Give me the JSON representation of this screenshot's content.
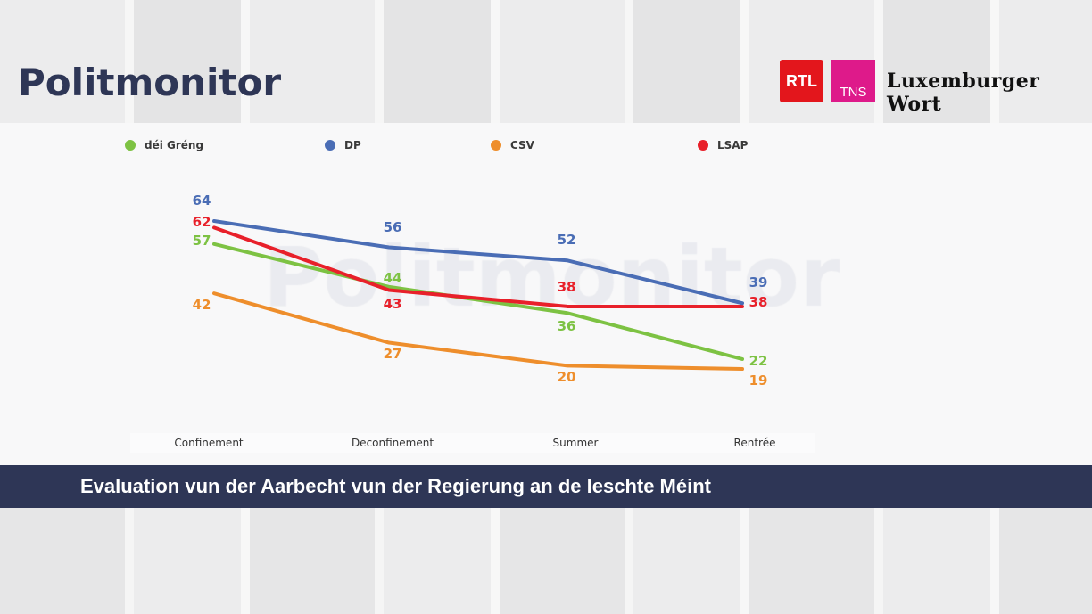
{
  "header": {
    "title": "Politmonitor"
  },
  "logos": {
    "rtl": "RTL",
    "tns": "TNS",
    "wort": "Luxemburger Wort"
  },
  "watermark": "Politmonitor",
  "subtitle": "Evaluation vun der Aarbecht vun der Regierung an de leschte Méint",
  "chart_data": {
    "type": "line",
    "title": "",
    "xlabel": "",
    "ylabel": "",
    "categories": [
      "Confinement",
      "Deconfinement",
      "Summer",
      "Rentrée"
    ],
    "legend_position": "top",
    "grid": false,
    "series": [
      {
        "name": "déi Gréng",
        "color": "#7dc243",
        "values": [
          57,
          44,
          36,
          22
        ]
      },
      {
        "name": "DP",
        "color": "#4a6db5",
        "values": [
          64,
          56,
          52,
          39
        ]
      },
      {
        "name": "CSV",
        "color": "#ee8e2c",
        "values": [
          42,
          27,
          20,
          19
        ]
      },
      {
        "name": "LSAP",
        "color": "#e8202a",
        "values": [
          62,
          43,
          38,
          38
        ]
      }
    ]
  }
}
